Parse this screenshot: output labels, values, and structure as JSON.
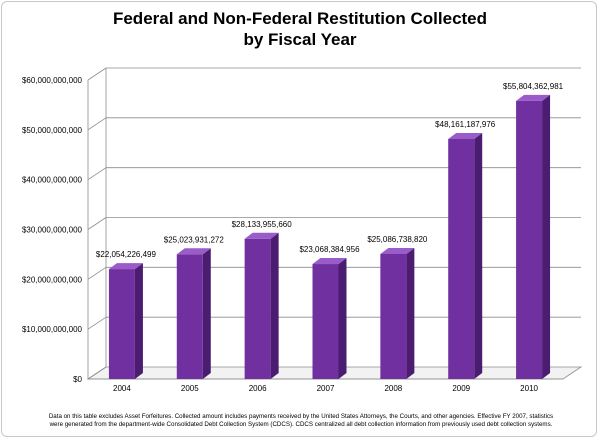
{
  "chart_data": {
    "type": "bar",
    "title_lines": [
      "Federal and Non-Federal Restitution Collected",
      "by Fiscal Year"
    ],
    "xlabel": "",
    "ylabel": "",
    "categories": [
      "2004",
      "2005",
      "2006",
      "2007",
      "2008",
      "2009",
      "2010"
    ],
    "values": [
      22054226499,
      25023931272,
      28133955660,
      23068384956,
      25086738820,
      48161187976,
      55804362981
    ],
    "value_labels": [
      "$22,054,226,499",
      "$25,023,931,272",
      "$28,133,955,660",
      "$23,068,384,956",
      "$25,086,738,820",
      "$48,161,187,976",
      "$55,804,362,981"
    ],
    "ylim": [
      0,
      60000000000
    ],
    "y_ticks": [
      0,
      10000000000,
      20000000000,
      30000000000,
      40000000000,
      50000000000,
      60000000000
    ],
    "y_tick_labels": [
      "$0",
      "$10,000,000,000",
      "$20,000,000,000",
      "$30,000,000,000",
      "$40,000,000,000",
      "$50,000,000,000",
      "$60,000,000,000"
    ],
    "grid": true,
    "legend": "none",
    "style": "3d-column",
    "colors": {
      "bar_front": "#7030a0",
      "bar_side": "#4b1d70",
      "bar_top": "#9a5cc8",
      "gridline": "#8c8c8c"
    }
  },
  "footnote": [
    "Data on this table excludes Asset Forfeitures.  Collected amount includes payments received by the United States Attorneys, the Courts, and other agencies.   Effective FY 2007, statistics",
    "were generated from the department-wide Consolidated Debt Collection System (CDCS).  CDCS centralized all debt collection information from previously used debt collection systems."
  ]
}
